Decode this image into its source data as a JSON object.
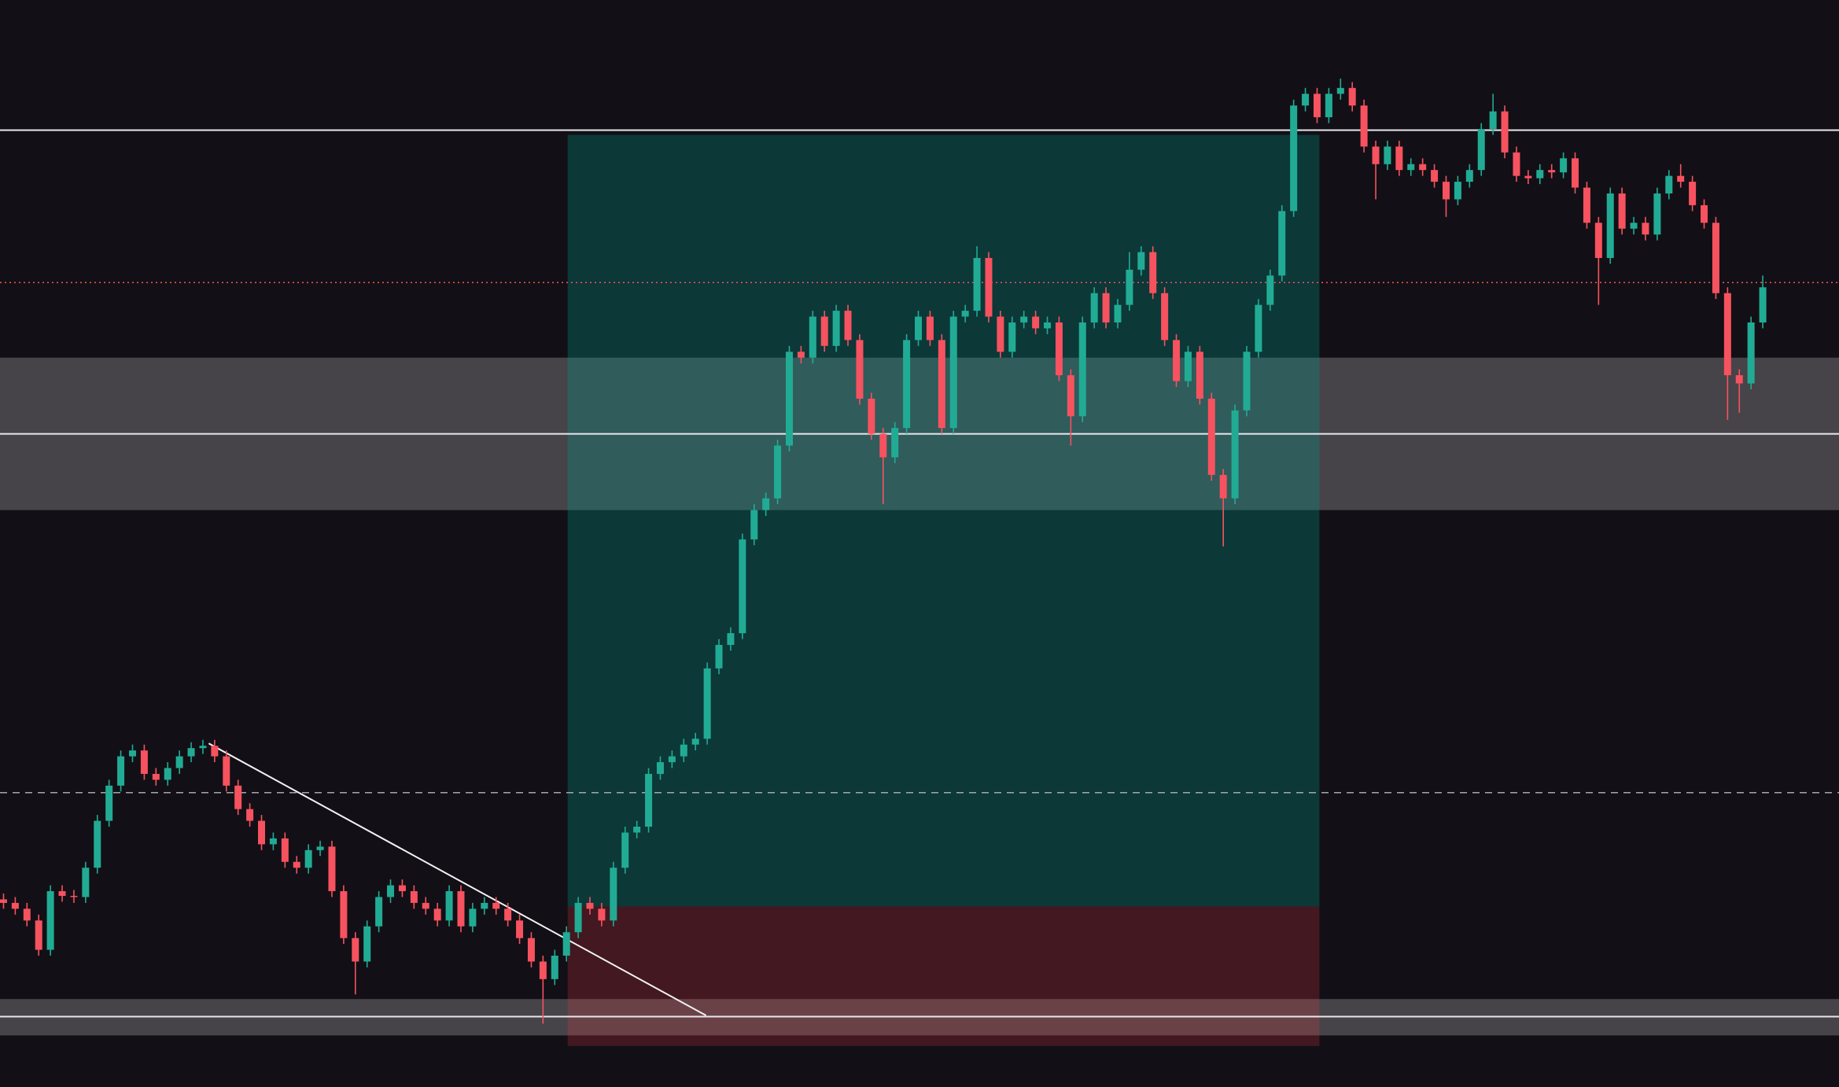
{
  "chart_data": {
    "type": "candlestick",
    "ylim": [
      0,
      927
    ],
    "up_color": "#22ab94",
    "down_color": "#f7525f",
    "open": [
      160,
      157,
      152,
      142,
      117,
      167,
      163,
      162,
      187,
      227,
      257,
      282,
      287,
      267,
      262,
      272,
      282,
      289,
      291,
      282,
      257,
      237,
      227,
      207,
      212,
      192,
      187,
      202,
      205,
      167,
      127,
      107,
      137,
      162,
      172,
      167,
      157,
      152,
      142,
      167,
      137,
      152,
      157,
      152,
      142,
      127,
      107,
      92,
      112,
      132,
      157,
      152,
      142,
      187,
      217,
      222,
      267,
      277,
      282,
      292,
      297,
      357,
      377,
      387,
      467,
      492,
      502,
      547,
      627,
      622,
      657,
      632,
      662,
      637,
      587,
      557,
      537,
      562,
      637,
      657,
      637,
      562,
      657,
      662,
      707,
      657,
      627,
      652,
      657,
      647,
      652,
      607,
      572,
      652,
      677,
      652,
      667,
      697,
      712,
      677,
      637,
      602,
      627,
      587,
      522,
      502,
      577,
      627,
      667,
      692,
      747,
      837,
      847,
      827,
      847,
      852,
      837,
      802,
      787,
      802,
      782,
      787,
      782,
      772,
      757,
      772,
      782,
      817,
      832,
      797,
      777,
      775,
      782,
      780,
      792,
      767,
      737,
      707,
      762,
      732,
      737,
      727,
      762,
      777,
      772,
      752,
      737,
      677,
      607,
      600,
      652
    ],
    "high": [
      165,
      162,
      157,
      147,
      172,
      172,
      168,
      192,
      232,
      262,
      287,
      292,
      292,
      272,
      277,
      287,
      294,
      296,
      296,
      287,
      262,
      242,
      232,
      217,
      217,
      197,
      207,
      210,
      210,
      172,
      132,
      142,
      167,
      177,
      177,
      172,
      162,
      157,
      172,
      172,
      157,
      162,
      162,
      157,
      147,
      132,
      112,
      117,
      137,
      162,
      162,
      157,
      192,
      222,
      227,
      272,
      282,
      287,
      297,
      302,
      362,
      382,
      392,
      472,
      497,
      507,
      552,
      632,
      632,
      662,
      662,
      667,
      667,
      642,
      592,
      562,
      567,
      642,
      662,
      662,
      642,
      662,
      667,
      717,
      712,
      662,
      657,
      662,
      662,
      657,
      657,
      612,
      657,
      682,
      682,
      672,
      712,
      717,
      717,
      682,
      642,
      632,
      632,
      592,
      527,
      582,
      632,
      672,
      697,
      752,
      842,
      852,
      852,
      852,
      860,
      857,
      842,
      807,
      807,
      807,
      792,
      792,
      787,
      777,
      777,
      787,
      822,
      847,
      837,
      802,
      782,
      787,
      787,
      797,
      797,
      772,
      742,
      767,
      767,
      742,
      742,
      767,
      782,
      787,
      777,
      757,
      742,
      682,
      612,
      657,
      692
    ],
    "low": [
      152,
      147,
      137,
      112,
      112,
      158,
      157,
      157,
      182,
      222,
      252,
      277,
      262,
      257,
      257,
      267,
      277,
      284,
      277,
      252,
      232,
      222,
      202,
      202,
      187,
      182,
      182,
      197,
      162,
      122,
      79,
      102,
      132,
      157,
      162,
      152,
      147,
      137,
      137,
      132,
      132,
      147,
      147,
      137,
      122,
      102,
      54,
      87,
      107,
      127,
      147,
      137,
      137,
      182,
      212,
      217,
      262,
      272,
      277,
      287,
      292,
      352,
      372,
      382,
      462,
      487,
      497,
      542,
      617,
      617,
      627,
      627,
      632,
      582,
      552,
      497,
      532,
      557,
      632,
      632,
      557,
      557,
      652,
      657,
      652,
      622,
      622,
      647,
      642,
      642,
      602,
      547,
      567,
      647,
      647,
      647,
      662,
      692,
      672,
      632,
      597,
      597,
      582,
      517,
      461,
      497,
      572,
      622,
      662,
      687,
      742,
      832,
      822,
      822,
      842,
      832,
      797,
      757,
      782,
      777,
      777,
      777,
      767,
      742,
      752,
      767,
      777,
      812,
      792,
      772,
      770,
      770,
      775,
      775,
      762,
      732,
      667,
      702,
      727,
      727,
      722,
      722,
      757,
      767,
      747,
      732,
      672,
      569,
      575,
      595,
      647
    ],
    "close": [
      157,
      152,
      142,
      117,
      167,
      163,
      162,
      187,
      227,
      257,
      282,
      287,
      267,
      262,
      272,
      282,
      289,
      291,
      282,
      257,
      237,
      227,
      207,
      212,
      192,
      187,
      202,
      205,
      167,
      127,
      107,
      137,
      162,
      172,
      167,
      157,
      152,
      142,
      167,
      137,
      152,
      157,
      152,
      142,
      127,
      107,
      92,
      112,
      132,
      157,
      152,
      142,
      187,
      217,
      222,
      267,
      277,
      282,
      292,
      297,
      357,
      377,
      387,
      467,
      492,
      502,
      547,
      627,
      622,
      657,
      632,
      662,
      637,
      587,
      557,
      537,
      562,
      637,
      657,
      637,
      562,
      657,
      662,
      707,
      657,
      627,
      652,
      657,
      647,
      652,
      607,
      572,
      652,
      677,
      652,
      667,
      697,
      712,
      677,
      637,
      602,
      627,
      587,
      522,
      502,
      577,
      627,
      667,
      692,
      747,
      837,
      847,
      827,
      847,
      852,
      837,
      802,
      787,
      802,
      782,
      787,
      782,
      772,
      757,
      772,
      782,
      817,
      832,
      797,
      777,
      775,
      782,
      780,
      792,
      767,
      737,
      707,
      762,
      732,
      737,
      727,
      762,
      777,
      772,
      752,
      737,
      677,
      607,
      600,
      652,
      682
    ],
    "levels": [
      816,
      557,
      60
    ],
    "dashed_level": 251,
    "dotted_level": 686,
    "zones": [
      [
        492,
        622
      ],
      [
        44,
        75
      ]
    ],
    "position": {
      "start": 48.1,
      "end": 112.2,
      "entry": 154,
      "target": 812,
      "stop": 35
    },
    "trendline": {
      "x": [
        17.5,
        59.9
      ],
      "y": [
        293,
        61
      ]
    }
  }
}
